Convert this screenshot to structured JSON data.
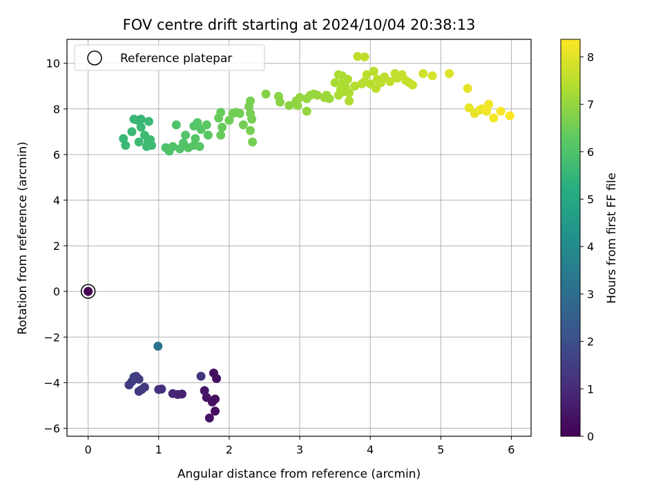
{
  "chart_data": {
    "type": "scatter",
    "title": "FOV centre drift starting at 2024/10/04 20:38:13",
    "xlabel": "Angular distance from reference (arcmin)",
    "ylabel": "Rotation from reference (arcmin)",
    "xlim": [
      -0.3,
      6.28
    ],
    "ylim": [
      -6.35,
      11.05
    ],
    "xticks": [
      0,
      1,
      2,
      3,
      4,
      5,
      6
    ],
    "yticks": [
      -6,
      -4,
      -2,
      0,
      2,
      4,
      6,
      8,
      10
    ],
    "grid": true,
    "legend": {
      "position": "top-left",
      "entries": [
        "Reference platepar"
      ]
    },
    "reference_point": {
      "x": 0,
      "y": 0
    },
    "colorbar": {
      "label": "Hours from first FF file",
      "range": [
        0,
        8.37
      ],
      "ticks": [
        0,
        1,
        2,
        3,
        4,
        5,
        6,
        7,
        8
      ],
      "colormap": "viridis"
    },
    "points": [
      {
        "x": 0.0,
        "y": 0.0,
        "h": 0.0
      },
      {
        "x": 0.99,
        "y": -2.4,
        "h": 3.1
      },
      {
        "x": 0.58,
        "y": -4.1,
        "h": 1.5
      },
      {
        "x": 0.62,
        "y": -3.95,
        "h": 1.5
      },
      {
        "x": 0.68,
        "y": -3.72,
        "h": 1.55
      },
      {
        "x": 0.72,
        "y": -3.85,
        "h": 1.5
      },
      {
        "x": 0.65,
        "y": -3.75,
        "h": 1.6
      },
      {
        "x": 0.72,
        "y": -4.38,
        "h": 1.45
      },
      {
        "x": 0.8,
        "y": -4.2,
        "h": 1.4
      },
      {
        "x": 0.76,
        "y": -4.3,
        "h": 1.45
      },
      {
        "x": 1.0,
        "y": -4.3,
        "h": 1.1
      },
      {
        "x": 1.04,
        "y": -4.28,
        "h": 1.1
      },
      {
        "x": 1.2,
        "y": -4.48,
        "h": 0.9
      },
      {
        "x": 1.27,
        "y": -4.52,
        "h": 0.85
      },
      {
        "x": 1.33,
        "y": -4.5,
        "h": 0.8
      },
      {
        "x": 1.6,
        "y": -3.72,
        "h": 1.3
      },
      {
        "x": 1.65,
        "y": -4.35,
        "h": 0.5
      },
      {
        "x": 1.68,
        "y": -4.65,
        "h": 0.45
      },
      {
        "x": 1.72,
        "y": -5.55,
        "h": 0.4
      },
      {
        "x": 1.76,
        "y": -4.85,
        "h": 0.4
      },
      {
        "x": 1.78,
        "y": -3.58,
        "h": 0.35
      },
      {
        "x": 1.8,
        "y": -4.72,
        "h": 0.35
      },
      {
        "x": 1.8,
        "y": -5.25,
        "h": 0.3
      },
      {
        "x": 1.82,
        "y": -3.82,
        "h": 0.3
      },
      {
        "x": 0.5,
        "y": 6.7,
        "h": 5.6
      },
      {
        "x": 0.53,
        "y": 6.4,
        "h": 5.6
      },
      {
        "x": 0.62,
        "y": 7.0,
        "h": 5.6
      },
      {
        "x": 0.65,
        "y": 7.55,
        "h": 5.55
      },
      {
        "x": 0.7,
        "y": 7.5,
        "h": 5.6
      },
      {
        "x": 0.72,
        "y": 6.55,
        "h": 5.65
      },
      {
        "x": 0.75,
        "y": 7.55,
        "h": 5.55
      },
      {
        "x": 0.75,
        "y": 7.2,
        "h": 5.6
      },
      {
        "x": 0.8,
        "y": 6.85,
        "h": 5.65
      },
      {
        "x": 0.85,
        "y": 6.6,
        "h": 5.7
      },
      {
        "x": 0.83,
        "y": 6.35,
        "h": 5.7
      },
      {
        "x": 0.86,
        "y": 7.45,
        "h": 5.6
      },
      {
        "x": 0.9,
        "y": 6.4,
        "h": 5.7
      },
      {
        "x": 0.88,
        "y": 6.65,
        "h": 5.7
      },
      {
        "x": 1.1,
        "y": 6.3,
        "h": 6.0
      },
      {
        "x": 1.15,
        "y": 6.15,
        "h": 6.0
      },
      {
        "x": 1.2,
        "y": 6.35,
        "h": 6.0
      },
      {
        "x": 1.25,
        "y": 7.3,
        "h": 6.0
      },
      {
        "x": 1.3,
        "y": 6.25,
        "h": 6.05
      },
      {
        "x": 1.35,
        "y": 6.5,
        "h": 6.05
      },
      {
        "x": 1.38,
        "y": 6.85,
        "h": 6.05
      },
      {
        "x": 1.42,
        "y": 6.3,
        "h": 6.1
      },
      {
        "x": 1.5,
        "y": 7.25,
        "h": 6.1
      },
      {
        "x": 1.5,
        "y": 6.4,
        "h": 6.1
      },
      {
        "x": 1.55,
        "y": 7.4,
        "h": 6.15
      },
      {
        "x": 1.58,
        "y": 6.35,
        "h": 6.15
      },
      {
        "x": 1.6,
        "y": 7.1,
        "h": 6.15
      },
      {
        "x": 1.52,
        "y": 6.7,
        "h": 6.1
      },
      {
        "x": 1.68,
        "y": 7.3,
        "h": 6.2
      },
      {
        "x": 1.7,
        "y": 6.85,
        "h": 6.2
      },
      {
        "x": 1.85,
        "y": 7.6,
        "h": 6.4
      },
      {
        "x": 1.88,
        "y": 7.85,
        "h": 6.4
      },
      {
        "x": 1.9,
        "y": 7.2,
        "h": 6.4
      },
      {
        "x": 1.88,
        "y": 6.85,
        "h": 6.4
      },
      {
        "x": 2.0,
        "y": 7.5,
        "h": 6.5
      },
      {
        "x": 2.05,
        "y": 7.8,
        "h": 6.5
      },
      {
        "x": 2.1,
        "y": 7.85,
        "h": 6.5
      },
      {
        "x": 2.15,
        "y": 7.8,
        "h": 6.55
      },
      {
        "x": 2.2,
        "y": 7.3,
        "h": 6.55
      },
      {
        "x": 2.28,
        "y": 8.1,
        "h": 6.6
      },
      {
        "x": 2.3,
        "y": 8.35,
        "h": 6.6
      },
      {
        "x": 2.3,
        "y": 7.8,
        "h": 6.6
      },
      {
        "x": 2.32,
        "y": 7.55,
        "h": 6.6
      },
      {
        "x": 2.3,
        "y": 7.05,
        "h": 6.6
      },
      {
        "x": 2.33,
        "y": 6.55,
        "h": 6.6
      },
      {
        "x": 2.52,
        "y": 8.65,
        "h": 6.8
      },
      {
        "x": 2.7,
        "y": 8.55,
        "h": 6.85
      },
      {
        "x": 2.72,
        "y": 8.3,
        "h": 6.85
      },
      {
        "x": 2.85,
        "y": 8.15,
        "h": 6.9
      },
      {
        "x": 2.95,
        "y": 8.35,
        "h": 6.95
      },
      {
        "x": 2.97,
        "y": 8.15,
        "h": 6.95
      },
      {
        "x": 3.0,
        "y": 8.5,
        "h": 7.0
      },
      {
        "x": 3.1,
        "y": 7.9,
        "h": 7.0
      },
      {
        "x": 3.1,
        "y": 8.45,
        "h": 7.0
      },
      {
        "x": 3.15,
        "y": 8.6,
        "h": 7.0
      },
      {
        "x": 3.2,
        "y": 8.65,
        "h": 7.05
      },
      {
        "x": 3.25,
        "y": 8.6,
        "h": 7.05
      },
      {
        "x": 3.35,
        "y": 8.5,
        "h": 7.1
      },
      {
        "x": 3.38,
        "y": 8.6,
        "h": 7.1
      },
      {
        "x": 3.42,
        "y": 8.45,
        "h": 7.1
      },
      {
        "x": 3.5,
        "y": 9.15,
        "h": 7.25
      },
      {
        "x": 3.55,
        "y": 9.5,
        "h": 7.3
      },
      {
        "x": 3.55,
        "y": 8.6,
        "h": 7.25
      },
      {
        "x": 3.58,
        "y": 8.85,
        "h": 7.3
      },
      {
        "x": 3.6,
        "y": 9.05,
        "h": 7.3
      },
      {
        "x": 3.6,
        "y": 9.45,
        "h": 7.3
      },
      {
        "x": 3.62,
        "y": 8.75,
        "h": 7.3
      },
      {
        "x": 3.65,
        "y": 8.95,
        "h": 7.3
      },
      {
        "x": 3.68,
        "y": 9.3,
        "h": 7.35
      },
      {
        "x": 3.7,
        "y": 8.7,
        "h": 7.35
      },
      {
        "x": 3.7,
        "y": 8.35,
        "h": 7.35
      },
      {
        "x": 3.62,
        "y": 9.2,
        "h": 7.3
      },
      {
        "x": 3.78,
        "y": 9.0,
        "h": 7.4
      },
      {
        "x": 3.82,
        "y": 10.3,
        "h": 7.55
      },
      {
        "x": 3.92,
        "y": 10.28,
        "h": 7.55
      },
      {
        "x": 3.88,
        "y": 9.1,
        "h": 7.45
      },
      {
        "x": 3.92,
        "y": 9.2,
        "h": 7.45
      },
      {
        "x": 3.95,
        "y": 9.5,
        "h": 7.5
      },
      {
        "x": 4.0,
        "y": 9.1,
        "h": 7.5
      },
      {
        "x": 4.05,
        "y": 9.65,
        "h": 7.5
      },
      {
        "x": 4.08,
        "y": 8.9,
        "h": 7.5
      },
      {
        "x": 4.1,
        "y": 9.3,
        "h": 7.55
      },
      {
        "x": 4.15,
        "y": 9.15,
        "h": 7.55
      },
      {
        "x": 4.2,
        "y": 9.4,
        "h": 7.55
      },
      {
        "x": 4.28,
        "y": 9.2,
        "h": 7.6
      },
      {
        "x": 4.35,
        "y": 9.55,
        "h": 7.6
      },
      {
        "x": 4.38,
        "y": 9.35,
        "h": 7.6
      },
      {
        "x": 4.45,
        "y": 9.5,
        "h": 7.65
      },
      {
        "x": 4.5,
        "y": 9.25,
        "h": 7.65
      },
      {
        "x": 4.55,
        "y": 9.15,
        "h": 7.65
      },
      {
        "x": 4.6,
        "y": 9.05,
        "h": 7.7
      },
      {
        "x": 4.75,
        "y": 9.55,
        "h": 7.8
      },
      {
        "x": 4.88,
        "y": 9.45,
        "h": 7.85
      },
      {
        "x": 5.12,
        "y": 9.55,
        "h": 7.95
      },
      {
        "x": 5.38,
        "y": 8.9,
        "h": 8.05
      },
      {
        "x": 5.4,
        "y": 8.05,
        "h": 8.1
      },
      {
        "x": 5.48,
        "y": 7.8,
        "h": 8.1
      },
      {
        "x": 5.55,
        "y": 7.95,
        "h": 8.15
      },
      {
        "x": 5.58,
        "y": 8.0,
        "h": 8.15
      },
      {
        "x": 5.65,
        "y": 7.9,
        "h": 8.2
      },
      {
        "x": 5.68,
        "y": 8.2,
        "h": 8.2
      },
      {
        "x": 5.75,
        "y": 7.6,
        "h": 8.25
      },
      {
        "x": 5.85,
        "y": 7.9,
        "h": 8.3
      },
      {
        "x": 5.98,
        "y": 7.7,
        "h": 8.35
      }
    ]
  }
}
